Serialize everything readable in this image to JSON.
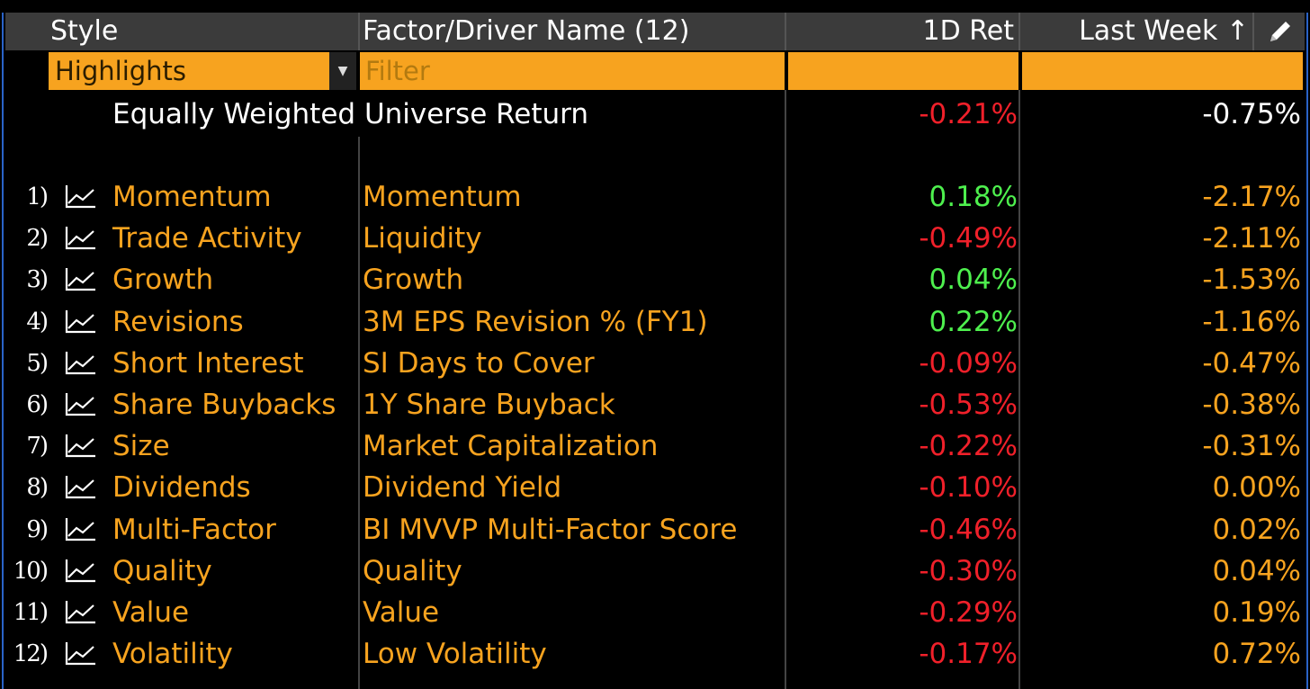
{
  "header": {
    "style": "Style",
    "factor": "Factor/Driver Name (12)",
    "ret1d": "1D Ret",
    "lastweek": "Last Week ↑",
    "edge_icon": "pencil-icon"
  },
  "filters": {
    "style_select": "Highlights",
    "factor_placeholder": "Filter"
  },
  "universe": {
    "label": "Equally Weighted Universe Return",
    "ret1d": "-0.21%",
    "lastweek": "-0.75%"
  },
  "rows": [
    {
      "num": "1)",
      "style": "Momentum",
      "factor": "Momentum",
      "ret1d": "0.18%",
      "lastweek": "-2.17%"
    },
    {
      "num": "2)",
      "style": "Trade Activity",
      "factor": "Liquidity",
      "ret1d": "-0.49%",
      "lastweek": "-2.11%"
    },
    {
      "num": "3)",
      "style": "Growth",
      "factor": "Growth",
      "ret1d": "0.04%",
      "lastweek": "-1.53%"
    },
    {
      "num": "4)",
      "style": "Revisions",
      "factor": "3M EPS Revision % (FY1)",
      "ret1d": "0.22%",
      "lastweek": "-1.16%"
    },
    {
      "num": "5)",
      "style": "Short Interest",
      "factor": "SI Days to Cover",
      "ret1d": "-0.09%",
      "lastweek": "-0.47%"
    },
    {
      "num": "6)",
      "style": "Share Buybacks",
      "factor": "1Y Share Buyback",
      "ret1d": "-0.53%",
      "lastweek": "-0.38%"
    },
    {
      "num": "7)",
      "style": "Size",
      "factor": "Market Capitalization",
      "ret1d": "-0.22%",
      "lastweek": "-0.31%"
    },
    {
      "num": "8)",
      "style": "Dividends",
      "factor": "Dividend Yield",
      "ret1d": "-0.10%",
      "lastweek": "0.00%"
    },
    {
      "num": "9)",
      "style": "Multi-Factor",
      "factor": "BI MVVP Multi-Factor Score",
      "ret1d": "-0.46%",
      "lastweek": "0.02%"
    },
    {
      "num": "10)",
      "style": "Quality",
      "factor": "Quality",
      "ret1d": "-0.30%",
      "lastweek": "0.04%"
    },
    {
      "num": "11)",
      "style": "Value",
      "factor": "Value",
      "ret1d": "-0.29%",
      "lastweek": "0.19%"
    },
    {
      "num": "12)",
      "style": "Volatility",
      "factor": "Low Volatility",
      "ret1d": "-0.17%",
      "lastweek": "0.72%"
    }
  ],
  "colors": {
    "orange": "#f7a31f",
    "positive": "#4ef04e",
    "negative": "#f0202a",
    "frame": "#2a63c8"
  }
}
